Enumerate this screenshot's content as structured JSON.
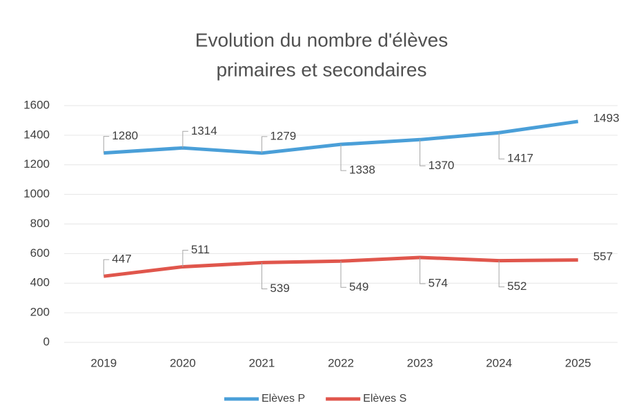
{
  "chart_data": {
    "type": "line",
    "title": [
      "Evolution du nombre d'élèves",
      "primaires et secondaires"
    ],
    "categories": [
      "2019",
      "2020",
      "2021",
      "2022",
      "2023",
      "2024",
      "2025"
    ],
    "series": [
      {
        "name": "Elèves P",
        "color": "#4a9fd8",
        "values": [
          1280,
          1314,
          1279,
          1338,
          1370,
          1417,
          1493
        ]
      },
      {
        "name": "Elèves S",
        "color": "#e0564c",
        "values": [
          447,
          511,
          539,
          549,
          574,
          552,
          557
        ]
      }
    ],
    "ylim": [
      0,
      1600
    ],
    "yticks": [
      0,
      200,
      400,
      600,
      800,
      1000,
      1200,
      1400,
      1600
    ],
    "grid": true,
    "legend": "bottom"
  }
}
